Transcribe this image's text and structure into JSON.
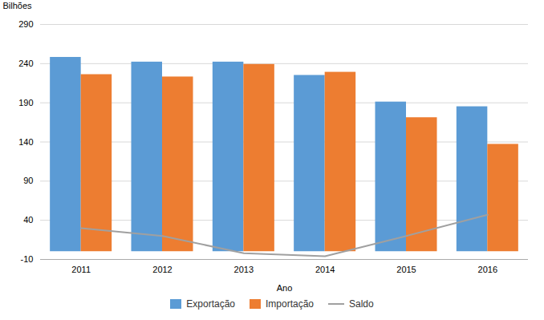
{
  "chart_data": {
    "type": "bar",
    "xlabel": "Ano",
    "ylabel": "Bilhões",
    "categories": [
      "2011",
      "2012",
      "2013",
      "2014",
      "2015",
      "2016"
    ],
    "series": [
      {
        "name": "Exportação",
        "color": "#5B9BD5",
        "values": [
          248,
          242,
          242,
          225,
          191,
          185
        ]
      },
      {
        "name": "Importação",
        "color": "#ED7D31",
        "values": [
          226,
          223,
          239,
          229,
          171,
          137
        ]
      },
      {
        "name": "Saldo",
        "type": "line",
        "color": "#A0A0A0",
        "values": [
          30,
          20,
          -2,
          -6,
          20,
          47
        ]
      }
    ],
    "ylim": [
      -10,
      290
    ],
    "yticks": [
      290,
      240,
      190,
      140,
      90,
      40,
      -10
    ],
    "grid": true,
    "legend": "bottom"
  }
}
